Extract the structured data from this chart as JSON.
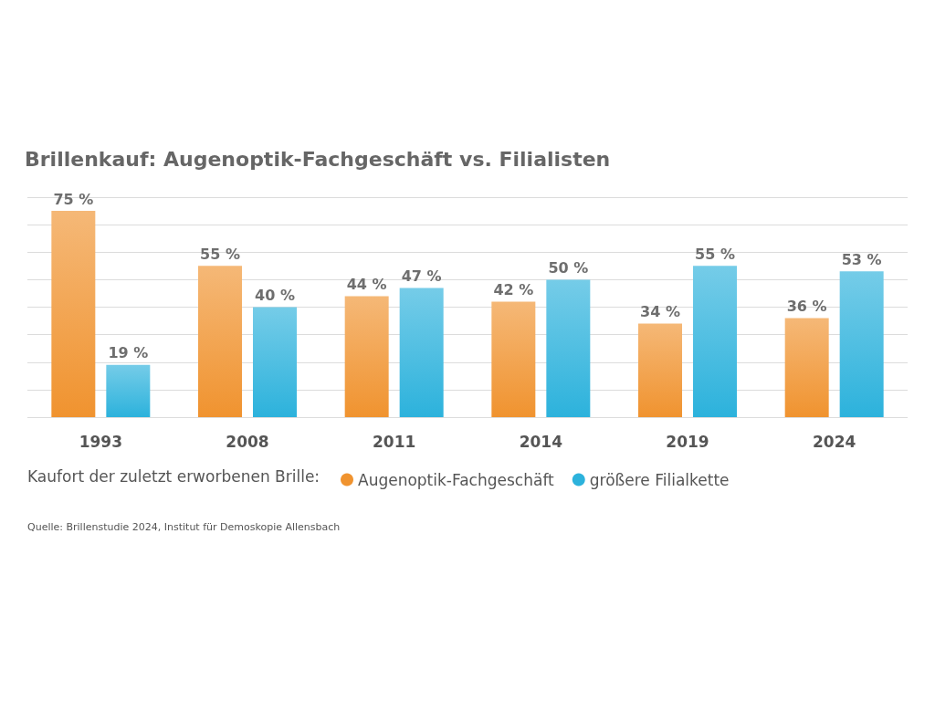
{
  "chart_data": {
    "type": "bar",
    "title": "Brillenkauf: Augenoptik-Fachgeschäft vs. Filialisten",
    "categories": [
      "1993",
      "2008",
      "2011",
      "2014",
      "2019",
      "2024"
    ],
    "series": [
      {
        "name": "Augenoptik-Fachgeschäft",
        "color": "#f0932f",
        "values": [
          75,
          55,
          44,
          42,
          34,
          36
        ],
        "value_labels": [
          "75 %",
          "55 %",
          "44 %",
          "42 %",
          "34 %",
          "36 %"
        ]
      },
      {
        "name": "größere Filialkette",
        "color": "#2cb2dc",
        "values": [
          19,
          40,
          47,
          50,
          55,
          53
        ],
        "value_labels": [
          "19 %",
          "40 %",
          "47 %",
          "50 %",
          "55 %",
          "53 %"
        ]
      }
    ],
    "ylim": [
      0,
      80
    ],
    "yticks": [
      {
        "value": 0,
        "label": null
      },
      {
        "value": 10,
        "label": null
      },
      {
        "value": 20,
        "label": null
      },
      {
        "value": 30,
        "label": null
      },
      {
        "value": 40,
        "label": null
      },
      {
        "value": 50,
        "label": null
      },
      {
        "value": 60,
        "label": null
      },
      {
        "value": 70,
        "label": null
      },
      {
        "value": 80,
        "label": null
      }
    ],
    "tick_labels": "x",
    "grid": "y",
    "legend": "bottom",
    "legend_title": "Kaufort der zuletzt erworbenen Brille:",
    "annotations": [
      "Quelle: Brillenstudie 2024, Institut für Demoskopie Allensbach"
    ]
  }
}
